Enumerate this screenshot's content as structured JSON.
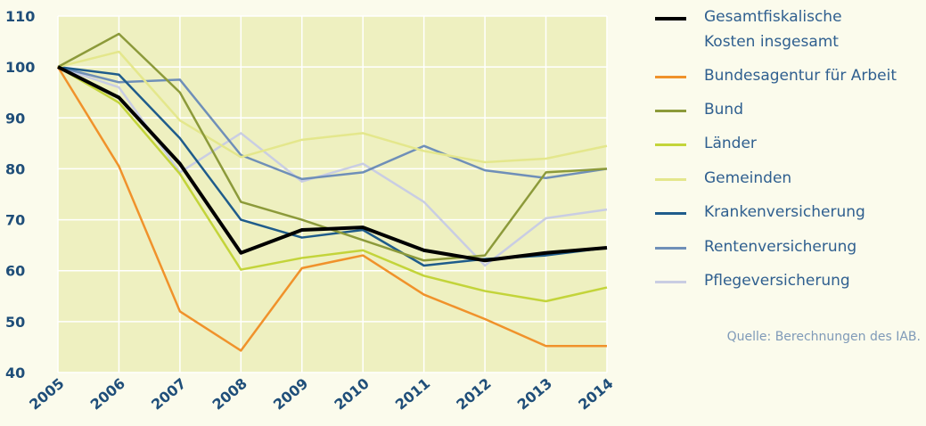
{
  "chart_data": {
    "type": "line",
    "categories": [
      "2005",
      "2006",
      "2007",
      "2008",
      "2009",
      "2010",
      "2011",
      "2012",
      "2013",
      "2014"
    ],
    "ylim": [
      40,
      110
    ],
    "yticks": [
      40,
      50,
      60,
      70,
      80,
      90,
      100,
      110
    ],
    "grid": true,
    "source": "Quelle: Berechnungen des IAB.",
    "series": [
      {
        "name": "Gesamtfiskalische\nKosten insgesamt",
        "color": "#000000",
        "values": [
          100,
          94,
          81,
          63.5,
          68,
          68.5,
          64,
          62,
          63.5,
          64.5
        ]
      },
      {
        "name": "Bundesagentur für Arbeit",
        "color": "#f0922b",
        "values": [
          100,
          80.5,
          52,
          44.3,
          60.5,
          63,
          55.3,
          50.5,
          45.2,
          45.2
        ]
      },
      {
        "name": "Bund",
        "color": "#8c9a3a",
        "values": [
          100,
          106.5,
          95,
          73.5,
          70,
          66,
          62,
          63,
          79.3,
          80
        ]
      },
      {
        "name": "Länder",
        "color": "#c3d43a",
        "values": [
          100,
          93,
          79,
          60.2,
          62.5,
          64,
          59,
          56,
          54,
          56.7
        ]
      },
      {
        "name": "Gemeinden",
        "color": "#e4e78c",
        "values": [
          100,
          103,
          89.5,
          82.3,
          85.7,
          87,
          83.5,
          81.3,
          82,
          84.5
        ]
      },
      {
        "name": "Krankenversicherung",
        "color": "#1f5c8b",
        "values": [
          100,
          98.5,
          86,
          70,
          66.5,
          68,
          61,
          62.3,
          63,
          64.5
        ]
      },
      {
        "name": "Rentenversicherung",
        "color": "#6f8fb8",
        "values": [
          100,
          97,
          97.5,
          82.7,
          78,
          79.3,
          84.5,
          79.7,
          78.2,
          80
        ]
      },
      {
        "name": "Pflegeversicherung",
        "color": "#c9cde3",
        "values": [
          100,
          96,
          79.3,
          87,
          77.5,
          81,
          73.5,
          61,
          70.3,
          72
        ]
      }
    ]
  }
}
